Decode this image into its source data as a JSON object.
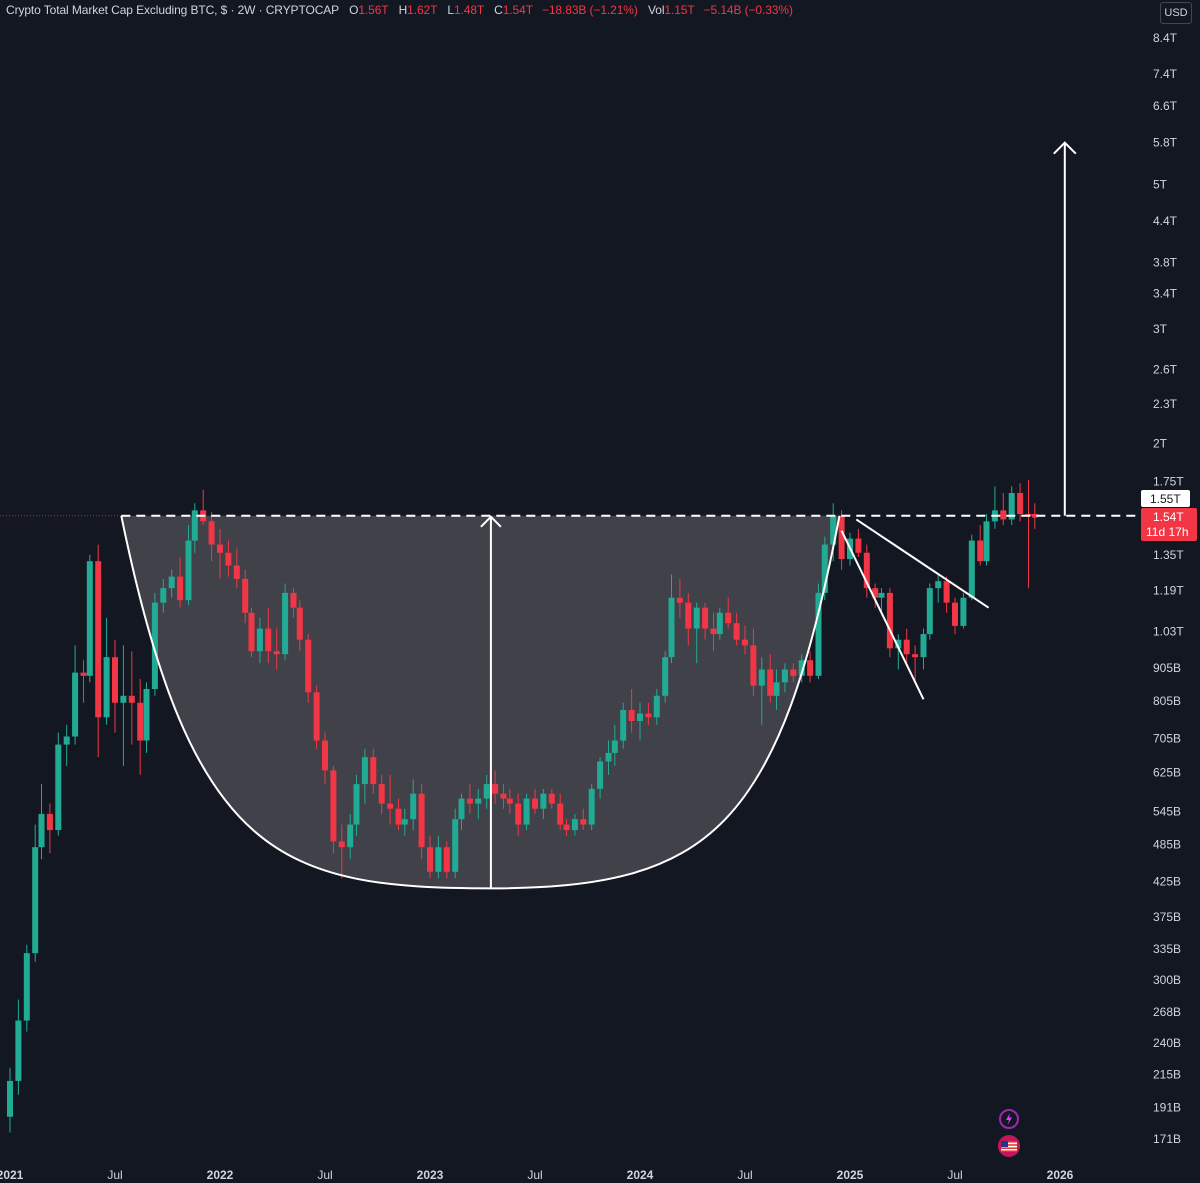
{
  "legend": {
    "title": "Crypto Total Market Cap Excluding BTC, $ · 2W · CRYPTOCAP",
    "open_label": "O",
    "open_value": "1.56T",
    "high_label": "H",
    "high_value": "1.62T",
    "low_label": "L",
    "low_value": "1.48T",
    "close_label": "C",
    "close_value": "1.54T",
    "change_value": "−18.83B (−1.21%)",
    "vol_label": "Vol",
    "vol_value": "1.15T",
    "vol_change_value": "−5.14B (−0.33%)"
  },
  "currency": "USD",
  "colors": {
    "up": "#22ab94",
    "down": "#f23645",
    "background": "#131722",
    "drawing": "#ffffff",
    "cup_fill": "#4a4b52"
  },
  "price_axis": {
    "labels": [
      "8.4T",
      "7.4T",
      "6.6T",
      "5.8T",
      "5T",
      "4.4T",
      "3.8T",
      "3.4T",
      "3T",
      "2.6T",
      "2.3T",
      "2T",
      "1.75T",
      "1.35T",
      "1.19T",
      "1.03T",
      "905B",
      "805B",
      "705B",
      "625B",
      "545B",
      "485B",
      "425B",
      "375B",
      "335B",
      "300B",
      "268B",
      "240B",
      "215B",
      "191B",
      "171B"
    ],
    "values": [
      8.4,
      7.4,
      6.6,
      5.8,
      5.0,
      4.4,
      3.8,
      3.4,
      3.0,
      2.6,
      2.3,
      2.0,
      1.75,
      1.35,
      1.19,
      1.03,
      0.905,
      0.805,
      0.705,
      0.625,
      0.545,
      0.485,
      0.425,
      0.375,
      0.335,
      0.3,
      0.268,
      0.24,
      0.215,
      0.191,
      0.171
    ],
    "scale": "log"
  },
  "time_axis": {
    "labels": [
      "2021",
      "Jul",
      "2022",
      "Jul",
      "2023",
      "Jul",
      "2024",
      "Jul",
      "2025",
      "Jul",
      "2026"
    ],
    "values": [
      2021.0,
      2021.5,
      2022.0,
      2022.5,
      2023.0,
      2023.5,
      2024.0,
      2024.5,
      2025.0,
      2025.5,
      2026.0
    ]
  },
  "markers": {
    "resistance_price": "1.55T",
    "last_price": "1.54T",
    "countdown": "11d 17h"
  },
  "chart_data": {
    "type": "candlestick",
    "interval": "2W",
    "y_scale": "log",
    "y_unit": "trillion USD",
    "xlim": [
      2020.98,
      2026.3
    ],
    "ylim": [
      0.16,
      9.2
    ],
    "resistance_level": 1.55,
    "annotations": {
      "cup_pattern": {
        "rim_level": 1.55,
        "start": 2021.53,
        "end": 2024.95,
        "bottom_x": 2023.29,
        "bottom_level": 0.415
      },
      "cup_depth_arrow": {
        "x": 2023.29,
        "from": 0.415,
        "to": 1.55
      },
      "target_arrow": {
        "x": 2026.08,
        "from": 1.55,
        "to": 5.8
      },
      "falling_wedge_upper": {
        "x": [
          2025.03,
          2025.66
        ],
        "y": [
          1.53,
          1.12
        ]
      },
      "falling_wedge_lower": {
        "x": [
          2024.96,
          2025.35
        ],
        "y": [
          1.47,
          0.81
        ]
      }
    },
    "candles": [
      {
        "t": 2021.0,
        "o": 0.185,
        "h": 0.22,
        "l": 0.175,
        "c": 0.21
      },
      {
        "t": 2021.04,
        "o": 0.21,
        "h": 0.28,
        "l": 0.2,
        "c": 0.26
      },
      {
        "t": 2021.08,
        "o": 0.26,
        "h": 0.34,
        "l": 0.25,
        "c": 0.33
      },
      {
        "t": 2021.12,
        "o": 0.33,
        "h": 0.52,
        "l": 0.32,
        "c": 0.48
      },
      {
        "t": 2021.15,
        "o": 0.48,
        "h": 0.6,
        "l": 0.46,
        "c": 0.54
      },
      {
        "t": 2021.19,
        "o": 0.54,
        "h": 0.56,
        "l": 0.47,
        "c": 0.51
      },
      {
        "t": 2021.23,
        "o": 0.51,
        "h": 0.72,
        "l": 0.5,
        "c": 0.69
      },
      {
        "t": 2021.27,
        "o": 0.69,
        "h": 0.74,
        "l": 0.64,
        "c": 0.71
      },
      {
        "t": 2021.31,
        "o": 0.71,
        "h": 0.98,
        "l": 0.69,
        "c": 0.89
      },
      {
        "t": 2021.35,
        "o": 0.89,
        "h": 0.93,
        "l": 0.8,
        "c": 0.88
      },
      {
        "t": 2021.38,
        "o": 0.88,
        "h": 1.35,
        "l": 0.86,
        "c": 1.32
      },
      {
        "t": 2021.42,
        "o": 1.32,
        "h": 1.4,
        "l": 0.66,
        "c": 0.76
      },
      {
        "t": 2021.46,
        "o": 0.76,
        "h": 1.08,
        "l": 0.74,
        "c": 0.94
      },
      {
        "t": 2021.5,
        "o": 0.94,
        "h": 1.0,
        "l": 0.72,
        "c": 0.8
      },
      {
        "t": 2021.54,
        "o": 0.8,
        "h": 0.98,
        "l": 0.64,
        "c": 0.82
      },
      {
        "t": 2021.58,
        "o": 0.82,
        "h": 0.96,
        "l": 0.69,
        "c": 0.8
      },
      {
        "t": 2021.62,
        "o": 0.8,
        "h": 0.87,
        "l": 0.62,
        "c": 0.7
      },
      {
        "t": 2021.65,
        "o": 0.7,
        "h": 0.86,
        "l": 0.67,
        "c": 0.84
      },
      {
        "t": 2021.69,
        "o": 0.84,
        "h": 1.18,
        "l": 0.82,
        "c": 1.14
      },
      {
        "t": 2021.73,
        "o": 1.14,
        "h": 1.24,
        "l": 1.1,
        "c": 1.2
      },
      {
        "t": 2021.77,
        "o": 1.2,
        "h": 1.28,
        "l": 1.16,
        "c": 1.25
      },
      {
        "t": 2021.81,
        "o": 1.25,
        "h": 1.34,
        "l": 1.12,
        "c": 1.15
      },
      {
        "t": 2021.85,
        "o": 1.15,
        "h": 1.5,
        "l": 1.13,
        "c": 1.42
      },
      {
        "t": 2021.88,
        "o": 1.42,
        "h": 1.62,
        "l": 1.36,
        "c": 1.58
      },
      {
        "t": 2021.92,
        "o": 1.58,
        "h": 1.7,
        "l": 1.5,
        "c": 1.52
      },
      {
        "t": 2021.96,
        "o": 1.52,
        "h": 1.57,
        "l": 1.32,
        "c": 1.4
      },
      {
        "t": 2022.0,
        "o": 1.4,
        "h": 1.48,
        "l": 1.24,
        "c": 1.36
      },
      {
        "t": 2022.04,
        "o": 1.36,
        "h": 1.42,
        "l": 1.25,
        "c": 1.3
      },
      {
        "t": 2022.08,
        "o": 1.3,
        "h": 1.38,
        "l": 1.2,
        "c": 1.24
      },
      {
        "t": 2022.12,
        "o": 1.24,
        "h": 1.28,
        "l": 1.06,
        "c": 1.1
      },
      {
        "t": 2022.15,
        "o": 1.1,
        "h": 1.12,
        "l": 0.94,
        "c": 0.96
      },
      {
        "t": 2022.19,
        "o": 0.96,
        "h": 1.08,
        "l": 0.92,
        "c": 1.04
      },
      {
        "t": 2022.23,
        "o": 1.04,
        "h": 1.12,
        "l": 0.92,
        "c": 0.96
      },
      {
        "t": 2022.27,
        "o": 0.96,
        "h": 1.04,
        "l": 0.9,
        "c": 0.95
      },
      {
        "t": 2022.31,
        "o": 0.95,
        "h": 1.22,
        "l": 0.93,
        "c": 1.18
      },
      {
        "t": 2022.35,
        "o": 1.18,
        "h": 1.2,
        "l": 1.08,
        "c": 1.12
      },
      {
        "t": 2022.38,
        "o": 1.12,
        "h": 1.15,
        "l": 0.96,
        "c": 1.0
      },
      {
        "t": 2022.42,
        "o": 1.0,
        "h": 1.02,
        "l": 0.8,
        "c": 0.83
      },
      {
        "t": 2022.46,
        "o": 0.83,
        "h": 0.85,
        "l": 0.68,
        "c": 0.7
      },
      {
        "t": 2022.5,
        "o": 0.7,
        "h": 0.72,
        "l": 0.6,
        "c": 0.63
      },
      {
        "t": 2022.54,
        "o": 0.63,
        "h": 0.64,
        "l": 0.47,
        "c": 0.49
      },
      {
        "t": 2022.58,
        "o": 0.49,
        "h": 0.52,
        "l": 0.43,
        "c": 0.48
      },
      {
        "t": 2022.62,
        "o": 0.48,
        "h": 0.54,
        "l": 0.46,
        "c": 0.52
      },
      {
        "t": 2022.65,
        "o": 0.52,
        "h": 0.62,
        "l": 0.5,
        "c": 0.6
      },
      {
        "t": 2022.69,
        "o": 0.6,
        "h": 0.68,
        "l": 0.56,
        "c": 0.66
      },
      {
        "t": 2022.73,
        "o": 0.66,
        "h": 0.68,
        "l": 0.58,
        "c": 0.6
      },
      {
        "t": 2022.77,
        "o": 0.6,
        "h": 0.62,
        "l": 0.54,
        "c": 0.56
      },
      {
        "t": 2022.81,
        "o": 0.56,
        "h": 0.62,
        "l": 0.52,
        "c": 0.55
      },
      {
        "t": 2022.85,
        "o": 0.55,
        "h": 0.57,
        "l": 0.51,
        "c": 0.52
      },
      {
        "t": 2022.88,
        "o": 0.52,
        "h": 0.55,
        "l": 0.5,
        "c": 0.53
      },
      {
        "t": 2022.92,
        "o": 0.53,
        "h": 0.61,
        "l": 0.51,
        "c": 0.58
      },
      {
        "t": 2022.96,
        "o": 0.58,
        "h": 0.6,
        "l": 0.46,
        "c": 0.48
      },
      {
        "t": 2023.0,
        "o": 0.48,
        "h": 0.5,
        "l": 0.43,
        "c": 0.44
      },
      {
        "t": 2023.04,
        "o": 0.44,
        "h": 0.5,
        "l": 0.43,
        "c": 0.48
      },
      {
        "t": 2023.08,
        "o": 0.48,
        "h": 0.49,
        "l": 0.43,
        "c": 0.44
      },
      {
        "t": 2023.12,
        "o": 0.44,
        "h": 0.55,
        "l": 0.43,
        "c": 0.53
      },
      {
        "t": 2023.15,
        "o": 0.53,
        "h": 0.58,
        "l": 0.51,
        "c": 0.57
      },
      {
        "t": 2023.19,
        "o": 0.57,
        "h": 0.6,
        "l": 0.54,
        "c": 0.56
      },
      {
        "t": 2023.23,
        "o": 0.56,
        "h": 0.59,
        "l": 0.53,
        "c": 0.57
      },
      {
        "t": 2023.27,
        "o": 0.57,
        "h": 0.62,
        "l": 0.55,
        "c": 0.6
      },
      {
        "t": 2023.31,
        "o": 0.6,
        "h": 0.63,
        "l": 0.56,
        "c": 0.58
      },
      {
        "t": 2023.35,
        "o": 0.58,
        "h": 0.6,
        "l": 0.55,
        "c": 0.57
      },
      {
        "t": 2023.38,
        "o": 0.57,
        "h": 0.59,
        "l": 0.54,
        "c": 0.56
      },
      {
        "t": 2023.42,
        "o": 0.56,
        "h": 0.58,
        "l": 0.5,
        "c": 0.52
      },
      {
        "t": 2023.46,
        "o": 0.52,
        "h": 0.58,
        "l": 0.51,
        "c": 0.57
      },
      {
        "t": 2023.5,
        "o": 0.57,
        "h": 0.59,
        "l": 0.54,
        "c": 0.55
      },
      {
        "t": 2023.54,
        "o": 0.55,
        "h": 0.59,
        "l": 0.53,
        "c": 0.58
      },
      {
        "t": 2023.58,
        "o": 0.58,
        "h": 0.59,
        "l": 0.55,
        "c": 0.56
      },
      {
        "t": 2023.62,
        "o": 0.56,
        "h": 0.58,
        "l": 0.51,
        "c": 0.52
      },
      {
        "t": 2023.65,
        "o": 0.52,
        "h": 0.53,
        "l": 0.5,
        "c": 0.51
      },
      {
        "t": 2023.69,
        "o": 0.51,
        "h": 0.54,
        "l": 0.5,
        "c": 0.53
      },
      {
        "t": 2023.73,
        "o": 0.53,
        "h": 0.55,
        "l": 0.51,
        "c": 0.52
      },
      {
        "t": 2023.77,
        "o": 0.52,
        "h": 0.6,
        "l": 0.51,
        "c": 0.59
      },
      {
        "t": 2023.81,
        "o": 0.59,
        "h": 0.66,
        "l": 0.57,
        "c": 0.65
      },
      {
        "t": 2023.85,
        "o": 0.65,
        "h": 0.7,
        "l": 0.62,
        "c": 0.67
      },
      {
        "t": 2023.88,
        "o": 0.67,
        "h": 0.74,
        "l": 0.64,
        "c": 0.7
      },
      {
        "t": 2023.92,
        "o": 0.7,
        "h": 0.8,
        "l": 0.68,
        "c": 0.78
      },
      {
        "t": 2023.96,
        "o": 0.78,
        "h": 0.84,
        "l": 0.72,
        "c": 0.75
      },
      {
        "t": 2024.0,
        "o": 0.75,
        "h": 0.8,
        "l": 0.7,
        "c": 0.77
      },
      {
        "t": 2024.04,
        "o": 0.77,
        "h": 0.8,
        "l": 0.74,
        "c": 0.76
      },
      {
        "t": 2024.08,
        "o": 0.76,
        "h": 0.84,
        "l": 0.74,
        "c": 0.82
      },
      {
        "t": 2024.12,
        "o": 0.82,
        "h": 0.96,
        "l": 0.8,
        "c": 0.94
      },
      {
        "t": 2024.15,
        "o": 0.94,
        "h": 1.26,
        "l": 0.92,
        "c": 1.16
      },
      {
        "t": 2024.19,
        "o": 1.16,
        "h": 1.24,
        "l": 1.08,
        "c": 1.14
      },
      {
        "t": 2024.23,
        "o": 1.14,
        "h": 1.18,
        "l": 0.98,
        "c": 1.04
      },
      {
        "t": 2024.27,
        "o": 1.04,
        "h": 1.14,
        "l": 0.92,
        "c": 1.12
      },
      {
        "t": 2024.31,
        "o": 1.12,
        "h": 1.14,
        "l": 1.0,
        "c": 1.04
      },
      {
        "t": 2024.35,
        "o": 1.04,
        "h": 1.1,
        "l": 0.96,
        "c": 1.02
      },
      {
        "t": 2024.38,
        "o": 1.02,
        "h": 1.12,
        "l": 1.0,
        "c": 1.1
      },
      {
        "t": 2024.42,
        "o": 1.1,
        "h": 1.16,
        "l": 1.04,
        "c": 1.06
      },
      {
        "t": 2024.46,
        "o": 1.06,
        "h": 1.1,
        "l": 0.98,
        "c": 1.0
      },
      {
        "t": 2024.5,
        "o": 1.0,
        "h": 1.05,
        "l": 0.95,
        "c": 0.98
      },
      {
        "t": 2024.54,
        "o": 0.98,
        "h": 1.04,
        "l": 0.82,
        "c": 0.85
      },
      {
        "t": 2024.58,
        "o": 0.85,
        "h": 0.94,
        "l": 0.74,
        "c": 0.9
      },
      {
        "t": 2024.62,
        "o": 0.9,
        "h": 0.95,
        "l": 0.8,
        "c": 0.82
      },
      {
        "t": 2024.65,
        "o": 0.82,
        "h": 0.9,
        "l": 0.78,
        "c": 0.86
      },
      {
        "t": 2024.69,
        "o": 0.86,
        "h": 0.92,
        "l": 0.83,
        "c": 0.9
      },
      {
        "t": 2024.73,
        "o": 0.9,
        "h": 0.92,
        "l": 0.86,
        "c": 0.88
      },
      {
        "t": 2024.77,
        "o": 0.88,
        "h": 0.95,
        "l": 0.86,
        "c": 0.93
      },
      {
        "t": 2024.81,
        "o": 0.93,
        "h": 0.96,
        "l": 0.86,
        "c": 0.88
      },
      {
        "t": 2024.85,
        "o": 0.88,
        "h": 1.22,
        "l": 0.87,
        "c": 1.18
      },
      {
        "t": 2024.88,
        "o": 1.18,
        "h": 1.44,
        "l": 1.15,
        "c": 1.4
      },
      {
        "t": 2024.92,
        "o": 1.4,
        "h": 1.62,
        "l": 1.32,
        "c": 1.55
      },
      {
        "t": 2024.96,
        "o": 1.55,
        "h": 1.58,
        "l": 1.28,
        "c": 1.33
      },
      {
        "t": 2025.0,
        "o": 1.33,
        "h": 1.46,
        "l": 1.3,
        "c": 1.43
      },
      {
        "t": 2025.04,
        "o": 1.43,
        "h": 1.48,
        "l": 1.34,
        "c": 1.36
      },
      {
        "t": 2025.08,
        "o": 1.36,
        "h": 1.4,
        "l": 1.16,
        "c": 1.2
      },
      {
        "t": 2025.12,
        "o": 1.2,
        "h": 1.22,
        "l": 1.12,
        "c": 1.16
      },
      {
        "t": 2025.15,
        "o": 1.16,
        "h": 1.2,
        "l": 1.1,
        "c": 1.18
      },
      {
        "t": 2025.19,
        "o": 1.18,
        "h": 1.2,
        "l": 0.94,
        "c": 0.97
      },
      {
        "t": 2025.23,
        "o": 0.97,
        "h": 1.02,
        "l": 0.9,
        "c": 1.0
      },
      {
        "t": 2025.27,
        "o": 1.0,
        "h": 1.04,
        "l": 0.92,
        "c": 0.95
      },
      {
        "t": 2025.31,
        "o": 0.95,
        "h": 0.98,
        "l": 0.86,
        "c": 0.94
      },
      {
        "t": 2025.35,
        "o": 0.94,
        "h": 1.04,
        "l": 0.9,
        "c": 1.02
      },
      {
        "t": 2025.38,
        "o": 1.02,
        "h": 1.22,
        "l": 1.0,
        "c": 1.2
      },
      {
        "t": 2025.42,
        "o": 1.2,
        "h": 1.26,
        "l": 1.14,
        "c": 1.23
      },
      {
        "t": 2025.46,
        "o": 1.23,
        "h": 1.25,
        "l": 1.1,
        "c": 1.14
      },
      {
        "t": 2025.5,
        "o": 1.14,
        "h": 1.16,
        "l": 1.02,
        "c": 1.05
      },
      {
        "t": 2025.54,
        "o": 1.05,
        "h": 1.18,
        "l": 1.04,
        "c": 1.16
      },
      {
        "t": 2025.58,
        "o": 1.16,
        "h": 1.45,
        "l": 1.15,
        "c": 1.42
      },
      {
        "t": 2025.62,
        "o": 1.42,
        "h": 1.5,
        "l": 1.3,
        "c": 1.32
      },
      {
        "t": 2025.65,
        "o": 1.32,
        "h": 1.56,
        "l": 1.3,
        "c": 1.52
      },
      {
        "t": 2025.69,
        "o": 1.52,
        "h": 1.72,
        "l": 1.48,
        "c": 1.58
      },
      {
        "t": 2025.73,
        "o": 1.58,
        "h": 1.68,
        "l": 1.5,
        "c": 1.53
      },
      {
        "t": 2025.77,
        "o": 1.53,
        "h": 1.72,
        "l": 1.5,
        "c": 1.68
      },
      {
        "t": 2025.81,
        "o": 1.68,
        "h": 1.74,
        "l": 1.52,
        "c": 1.56
      },
      {
        "t": 2025.85,
        "o": 1.56,
        "h": 1.76,
        "l": 1.2,
        "c": 1.55
      },
      {
        "t": 2025.88,
        "o": 1.56,
        "h": 1.62,
        "l": 1.48,
        "c": 1.54
      }
    ]
  }
}
